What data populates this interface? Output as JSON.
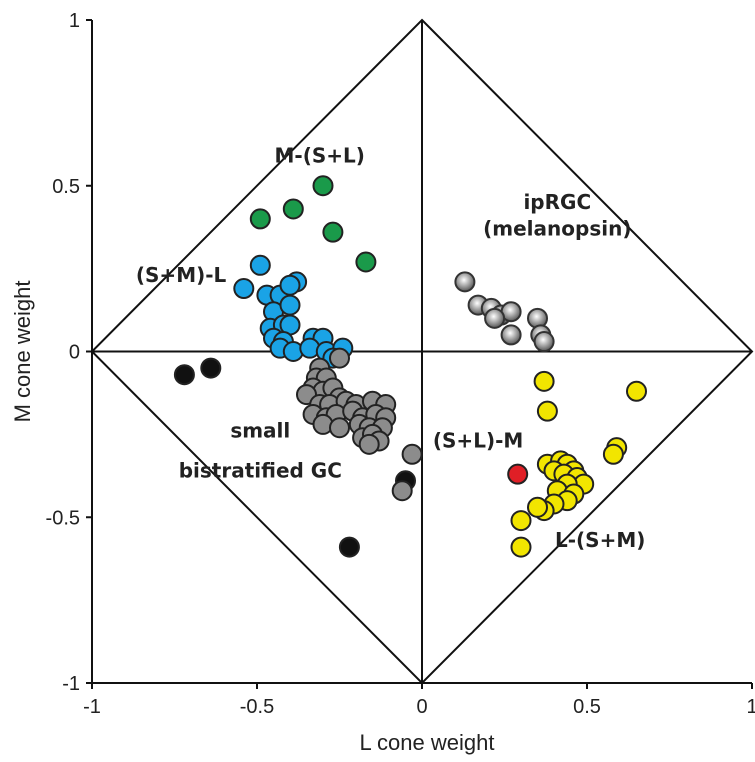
{
  "chart_data": {
    "type": "scatter",
    "title": "",
    "xlabel": "L cone weight",
    "ylabel": "M cone weight",
    "xlim": [
      -1,
      1
    ],
    "ylim": [
      -1,
      1
    ],
    "x_ticks": [
      {
        "value": -1,
        "label": "-1"
      },
      {
        "value": -0.5,
        "label": "-0.5"
      },
      {
        "value": 0,
        "label": "0"
      },
      {
        "value": 0.5,
        "label": "0.5"
      },
      {
        "value": 1,
        "label": "1"
      }
    ],
    "y_ticks": [
      {
        "value": -1,
        "label": "-1"
      },
      {
        "value": -0.5,
        "label": "-0.5"
      },
      {
        "value": 0,
        "label": "0"
      },
      {
        "value": 0.5,
        "label": "0.5"
      },
      {
        "value": 1,
        "label": "1"
      }
    ],
    "annotations": [
      {
        "text": "M-(S+L)",
        "x": -0.31,
        "y": 0.57
      },
      {
        "text": "(S+M)-L",
        "x": -0.73,
        "y": 0.21
      },
      {
        "text": "ipRGC",
        "x": 0.41,
        "y": 0.43
      },
      {
        "text": "(melanopsin)",
        "x": 0.41,
        "y": 0.35
      },
      {
        "text": "small",
        "x": -0.49,
        "y": -0.26
      },
      {
        "text": "bistratified GC",
        "x": -0.49,
        "y": -0.38
      },
      {
        "text": "(S+L)-M",
        "x": 0.17,
        "y": -0.29
      },
      {
        "text": "L-(S+M)",
        "x": 0.54,
        "y": -0.59
      }
    ],
    "series": [
      {
        "color": "#1a9a4a",
        "points": [
          [
            -0.49,
            0.4
          ],
          [
            -0.39,
            0.43
          ],
          [
            -0.3,
            0.5
          ],
          [
            -0.27,
            0.36
          ],
          [
            -0.17,
            0.27
          ]
        ]
      },
      {
        "color": "#1aa3e6",
        "points": [
          [
            -0.49,
            0.26
          ],
          [
            -0.54,
            0.19
          ],
          [
            -0.47,
            0.17
          ],
          [
            -0.43,
            0.17
          ],
          [
            -0.38,
            0.21
          ],
          [
            -0.4,
            0.2
          ],
          [
            -0.45,
            0.12
          ],
          [
            -0.4,
            0.14
          ],
          [
            -0.46,
            0.07
          ],
          [
            -0.42,
            0.08
          ],
          [
            -0.4,
            0.08
          ],
          [
            -0.45,
            0.04
          ],
          [
            -0.42,
            0.03
          ],
          [
            -0.43,
            0.01
          ],
          [
            -0.39,
            0.0
          ],
          [
            -0.33,
            0.04
          ],
          [
            -0.3,
            0.04
          ],
          [
            -0.34,
            0.01
          ],
          [
            -0.29,
            0.0
          ],
          [
            -0.24,
            0.01
          ],
          [
            -0.27,
            -0.02
          ]
        ]
      },
      {
        "color": "#111111",
        "points": [
          [
            -0.72,
            -0.07
          ],
          [
            -0.64,
            -0.05
          ],
          [
            -0.05,
            -0.39
          ],
          [
            -0.22,
            -0.59
          ]
        ]
      },
      {
        "color": "#8c8c8c",
        "points": [
          [
            -0.25,
            -0.02
          ],
          [
            -0.31,
            -0.05
          ],
          [
            -0.32,
            -0.08
          ],
          [
            -0.29,
            -0.08
          ],
          [
            -0.33,
            -0.11
          ],
          [
            -0.3,
            -0.12
          ],
          [
            -0.27,
            -0.11
          ],
          [
            -0.35,
            -0.13
          ],
          [
            -0.25,
            -0.14
          ],
          [
            -0.31,
            -0.16
          ],
          [
            -0.28,
            -0.16
          ],
          [
            -0.23,
            -0.15
          ],
          [
            -0.2,
            -0.16
          ],
          [
            -0.15,
            -0.15
          ],
          [
            -0.11,
            -0.16
          ],
          [
            -0.33,
            -0.19
          ],
          [
            -0.29,
            -0.2
          ],
          [
            -0.26,
            -0.19
          ],
          [
            -0.21,
            -0.18
          ],
          [
            -0.18,
            -0.2
          ],
          [
            -0.14,
            -0.19
          ],
          [
            -0.11,
            -0.2
          ],
          [
            -0.3,
            -0.22
          ],
          [
            -0.25,
            -0.23
          ],
          [
            -0.19,
            -0.22
          ],
          [
            -0.16,
            -0.23
          ],
          [
            -0.12,
            -0.23
          ],
          [
            -0.18,
            -0.26
          ],
          [
            -0.15,
            -0.25
          ],
          [
            -0.13,
            -0.27
          ],
          [
            -0.16,
            -0.28
          ],
          [
            -0.03,
            -0.31
          ],
          [
            -0.06,
            -0.42
          ]
        ]
      },
      {
        "color": "#cfcfcf",
        "stroke": "#333333",
        "points": [
          [
            0.13,
            0.21
          ],
          [
            0.17,
            0.14
          ],
          [
            0.21,
            0.13
          ],
          [
            0.24,
            0.11
          ],
          [
            0.27,
            0.12
          ],
          [
            0.22,
            0.1
          ],
          [
            0.27,
            0.05
          ],
          [
            0.35,
            0.1
          ],
          [
            0.36,
            0.05
          ],
          [
            0.37,
            0.03
          ]
        ]
      },
      {
        "color": "#f2e500",
        "points": [
          [
            0.37,
            -0.09
          ],
          [
            0.38,
            -0.18
          ],
          [
            0.65,
            -0.12
          ],
          [
            0.59,
            -0.29
          ],
          [
            0.58,
            -0.31
          ],
          [
            0.38,
            -0.34
          ],
          [
            0.42,
            -0.33
          ],
          [
            0.44,
            -0.34
          ],
          [
            0.46,
            -0.36
          ],
          [
            0.4,
            -0.36
          ],
          [
            0.43,
            -0.37
          ],
          [
            0.47,
            -0.38
          ],
          [
            0.49,
            -0.4
          ],
          [
            0.44,
            -0.4
          ],
          [
            0.41,
            -0.42
          ],
          [
            0.46,
            -0.43
          ],
          [
            0.44,
            -0.45
          ],
          [
            0.4,
            -0.46
          ],
          [
            0.37,
            -0.48
          ],
          [
            0.35,
            -0.47
          ],
          [
            0.3,
            -0.51
          ],
          [
            0.3,
            -0.59
          ]
        ]
      },
      {
        "color": "#e01f26",
        "points": [
          [
            0.29,
            -0.37
          ]
        ]
      }
    ]
  }
}
